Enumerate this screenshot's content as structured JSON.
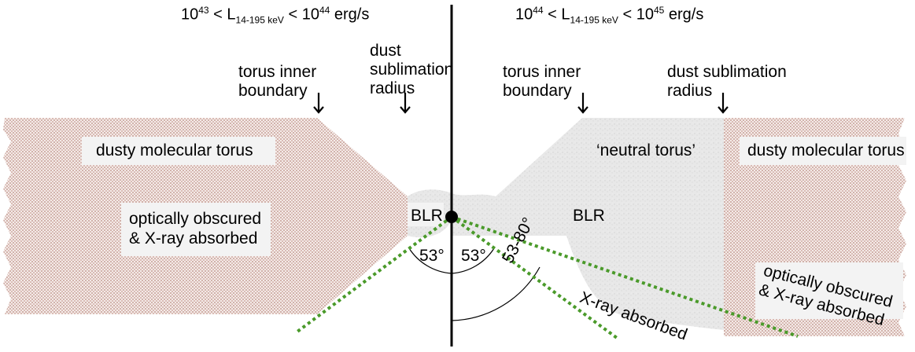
{
  "left_panel": {
    "header": {
      "base1": "10",
      "exp1": "43",
      "lt1": " < L",
      "sub": "14-195 keV",
      "lt2": " < 10",
      "exp2": "44",
      "unit": " erg/s"
    },
    "torus_inner_boundary": "torus inner boundary",
    "dust_sublimation_radius": "dust sublimation radius",
    "torus_label": "dusty molecular torus",
    "obscured_label": "optically obscured & X-ray absorbed",
    "blr_label": "BLR",
    "angle_left": "53°",
    "angle_right": "53°"
  },
  "right_panel": {
    "header": {
      "base1": "10",
      "exp1": "44",
      "lt1": " < L",
      "sub": "14-195 keV",
      "lt2": " < 10",
      "exp2": "45",
      "unit": " erg/s"
    },
    "torus_inner_boundary": "torus inner boundary",
    "dust_sublimation_radius": "dust sublimation radius",
    "neutral_torus_label": "‘neutral torus’",
    "torus_label": "dusty molecular torus",
    "blr_label": "BLR",
    "angle_range": "53-80°",
    "xray_absorbed_label": "X-ray absorbed",
    "obscured_label": "optically obscured & X-ray absorbed"
  },
  "colors": {
    "torus_fill": "#c9a8a0",
    "neutral_fill": "#e6e6e6",
    "label_bg": "#f3f3f3",
    "dotted_line": "#4a9a2a",
    "axis": "#000000"
  }
}
